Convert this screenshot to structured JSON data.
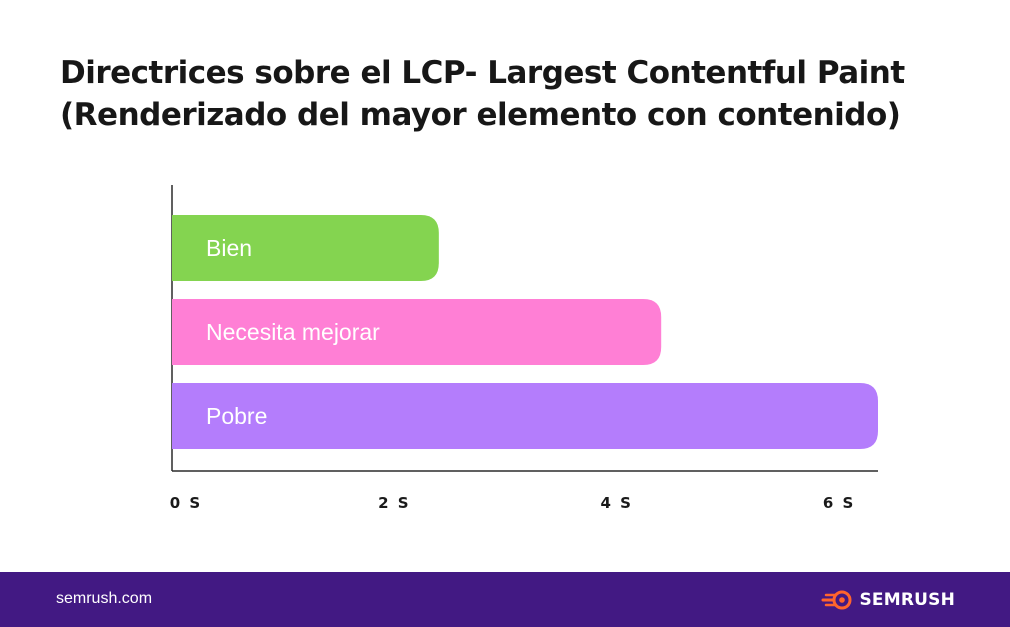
{
  "header": {
    "title_line1": "Directrices sobre el LCP- Largest Contentful Paint",
    "title_line2": "(Renderizado del mayor elemento con contenido)"
  },
  "chart_data": {
    "type": "bar",
    "orientation": "horizontal",
    "categories": [
      "Bien",
      "Necesita mejorar",
      "Pobre"
    ],
    "values": [
      2.4,
      4.4,
      6.35
    ],
    "colors": [
      "#84d450",
      "#ff7fd5",
      "#b47dfc"
    ],
    "xticks": [
      "0 S",
      "2 S",
      "4 S",
      "6 S"
    ],
    "xtick_values": [
      0,
      2,
      4,
      6
    ],
    "xlim": [
      0,
      6.35
    ],
    "grid": false
  },
  "footer": {
    "site": "semrush.com",
    "brand": "SEMRUSH",
    "background": "#421983",
    "logo_icon": "semrush-fire-icon"
  }
}
